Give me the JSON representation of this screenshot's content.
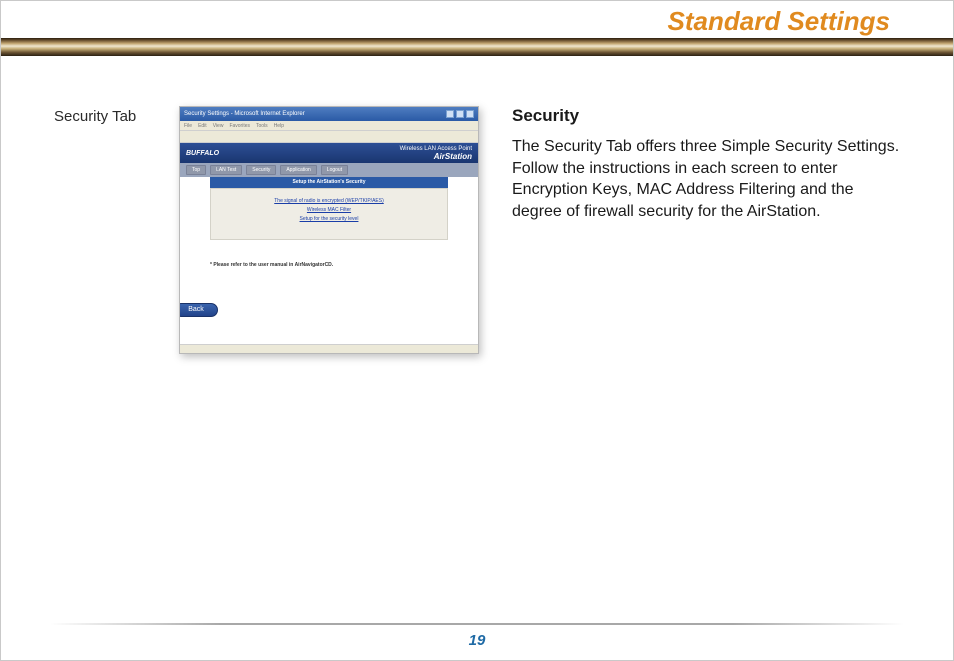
{
  "header": {
    "title": "Standard Settings",
    "title_color": "#e08a1f",
    "bar_gradient": [
      "#2b1f0e",
      "#5a4326",
      "#c1a56f",
      "#efe6cf",
      "#c5ae77",
      "#6b5433",
      "#2a2013"
    ]
  },
  "caption": "Security Tab",
  "screenshot": {
    "window_title": "Security Settings - Microsoft Internet Explorer",
    "menu_items": [
      "File",
      "Edit",
      "View",
      "Favorites",
      "Tools",
      "Help"
    ],
    "brand_left": "BUFFALO",
    "brand_right_line1": "Wireless LAN Access Point",
    "brand_right_line2": "AirStation",
    "tabs": [
      "Top",
      "LAN Test",
      "Security",
      "Application",
      "Logout"
    ],
    "setup_title": "Setup the AirStation's Security",
    "links": [
      "The signal of radio is encrypted (WEP/TKIP/AES)",
      "Wireless MAC Filter",
      "Setup for the security level"
    ],
    "note": "* Please refer to the user manual in AirNavigatorCD.",
    "back_label": "Back",
    "colors": {
      "titlebar": "#2a5aa6",
      "brandbar_top": "#2d4f95",
      "brandbar_bottom": "#1a3670",
      "tabbar": "#9aa6bd",
      "panel_bg": "#efede5",
      "link_color": "#1a3ea8",
      "menubar_bg": "#ece9d8"
    }
  },
  "right": {
    "heading": "Security",
    "body": "The Security Tab offers three Simple Security Settings. Follow the instructions in each screen to enter Encryption Keys, MAC Address Filter­ing and the degree of firewall security for the AirStation."
  },
  "page_number": "19",
  "page_number_color": "#1f6aa5"
}
